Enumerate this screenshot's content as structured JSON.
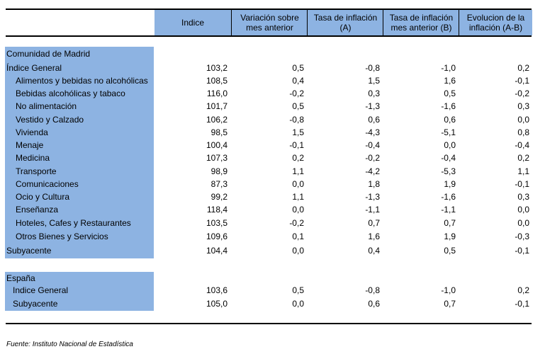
{
  "header": {
    "c1": [
      "Indice"
    ],
    "c2": [
      "Variación sobre",
      "mes anterior"
    ],
    "c3": [
      "Tasa de inflación",
      "(A)"
    ],
    "c4": [
      "Tasa de inflación",
      "mes anterior (B)"
    ],
    "c5": [
      "Evolucion de la",
      "inflación (A-B)"
    ]
  },
  "madrid": {
    "section_label": "Comunidad de Madrid",
    "rows": [
      {
        "label": "Índice General",
        "values": [
          "103,2",
          "0,5",
          "-0,8",
          "-1,0",
          "0,2"
        ]
      },
      {
        "label": "Alimentos y bebidas no alcohólicas",
        "values": [
          "108,5",
          "0,4",
          "1,5",
          "1,6",
          "-0,1"
        ]
      },
      {
        "label": "Bebidas alcohólicas y tabaco",
        "values": [
          "116,0",
          "-0,2",
          "0,3",
          "0,5",
          "-0,2"
        ]
      },
      {
        "label": "No alimentación",
        "values": [
          "101,7",
          "0,5",
          "-1,3",
          "-1,6",
          "0,3"
        ]
      },
      {
        "label": "Vestido y Calzado",
        "values": [
          "106,2",
          "-0,8",
          "0,6",
          "0,6",
          "0,0"
        ]
      },
      {
        "label": "Vivienda",
        "values": [
          "98,5",
          "1,5",
          "-4,3",
          "-5,1",
          "0,8"
        ]
      },
      {
        "label": "Menaje",
        "values": [
          "100,4",
          "-0,1",
          "-0,4",
          "0,0",
          "-0,4"
        ]
      },
      {
        "label": "Medicina",
        "values": [
          "107,3",
          "0,2",
          "-0,2",
          "-0,4",
          "0,2"
        ]
      },
      {
        "label": "Transporte",
        "values": [
          "98,9",
          "1,1",
          "-4,2",
          "-5,3",
          "1,1"
        ]
      },
      {
        "label": "Comunicaciones",
        "values": [
          "87,3",
          "0,0",
          "1,8",
          "1,9",
          "-0,1"
        ]
      },
      {
        "label": "Ocio y Cultura",
        "values": [
          "99,2",
          "1,1",
          "-1,3",
          "-1,6",
          "0,3"
        ]
      },
      {
        "label": "Enseñanza",
        "values": [
          "118,4",
          "0,0",
          "-1,1",
          "-1,1",
          "0,0"
        ]
      },
      {
        "label": "Hoteles, Cafes y Restaurantes",
        "values": [
          "103,5",
          "-0,2",
          "0,7",
          "0,7",
          "0,0"
        ]
      },
      {
        "label": "Otros Bienes y Servicios",
        "values": [
          "109,6",
          "0,1",
          "1,6",
          "1,9",
          "-0,3"
        ]
      },
      {
        "label": "Subyacente",
        "values": [
          "104,4",
          "0,0",
          "0,4",
          "0,5",
          "-0,1"
        ]
      }
    ]
  },
  "spain": {
    "section_label": "España",
    "rows": [
      {
        "label": "Indice General",
        "values": [
          "103,6",
          "0,5",
          "-0,8",
          "-1,0",
          "0,2"
        ]
      },
      {
        "label": "Subyacente",
        "values": [
          "105,0",
          "0,0",
          "0,6",
          "0,7",
          "-0,1"
        ]
      }
    ]
  },
  "source": "Fuente: Instituto Nacional de Estadística"
}
